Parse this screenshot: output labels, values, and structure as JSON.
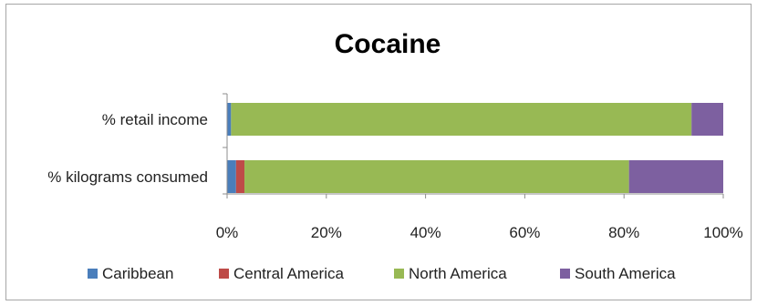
{
  "chart_data": {
    "type": "bar",
    "orientation": "horizontal",
    "stacked": "percent",
    "title": "Cocaine",
    "categories": [
      "% retail income",
      "% kilograms consumed"
    ],
    "series": [
      {
        "name": "Caribbean",
        "color": "#4a7ebb",
        "values": [
          0.8,
          1.8
        ]
      },
      {
        "name": "Central America",
        "color": "#be4b48",
        "values": [
          0.0,
          1.7
        ]
      },
      {
        "name": "North America",
        "color": "#98b954",
        "values": [
          92.8,
          77.5
        ]
      },
      {
        "name": "South America",
        "color": "#7d60a0",
        "values": [
          6.4,
          19.0
        ]
      }
    ],
    "xlim": [
      0,
      100
    ],
    "xticks": [
      "0%",
      "20%",
      "40%",
      "60%",
      "80%",
      "100%"
    ],
    "legend_position": "bottom",
    "grid": false
  }
}
